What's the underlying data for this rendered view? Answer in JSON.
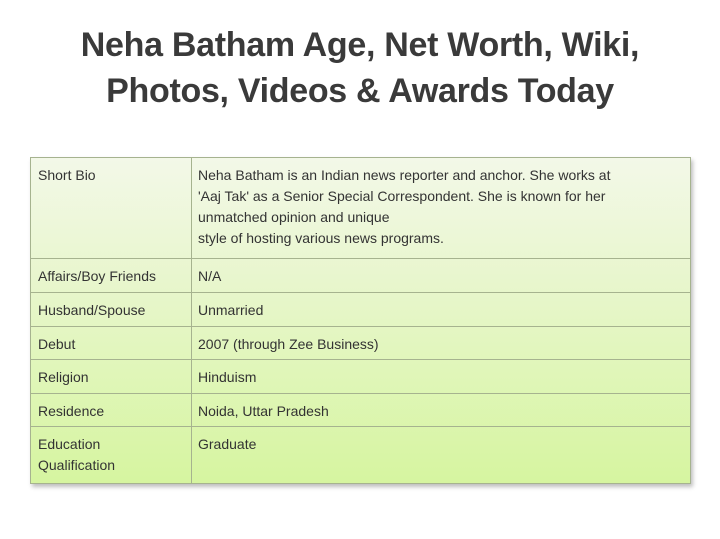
{
  "title": {
    "line1": "Neha Batham Age, Net Worth, Wiki,",
    "line2": "Photos, Videos & Awards Today"
  },
  "table": {
    "rows": [
      {
        "label": "Short Bio",
        "value_lines": [
          "Neha Batham is an Indian news reporter and anchor. She works at",
          "'Aaj Tak' as a Senior Special Correspondent. She is known for her",
          "unmatched opinion and unique",
          "style of hosting various news programs."
        ]
      },
      {
        "label": "Affairs/Boy Friends",
        "value": "N/A"
      },
      {
        "label": "Husband/Spouse",
        "value": "Unmarried"
      },
      {
        "label": "Debut",
        "value": "2007 (through Zee Business)"
      },
      {
        "label": "Religion",
        "value": "Hinduism"
      },
      {
        "label": "Residence",
        "value": "Noida, Uttar Pradesh"
      },
      {
        "label_lines": [
          "Education",
          "Qualification"
        ],
        "value": "Graduate"
      }
    ]
  }
}
